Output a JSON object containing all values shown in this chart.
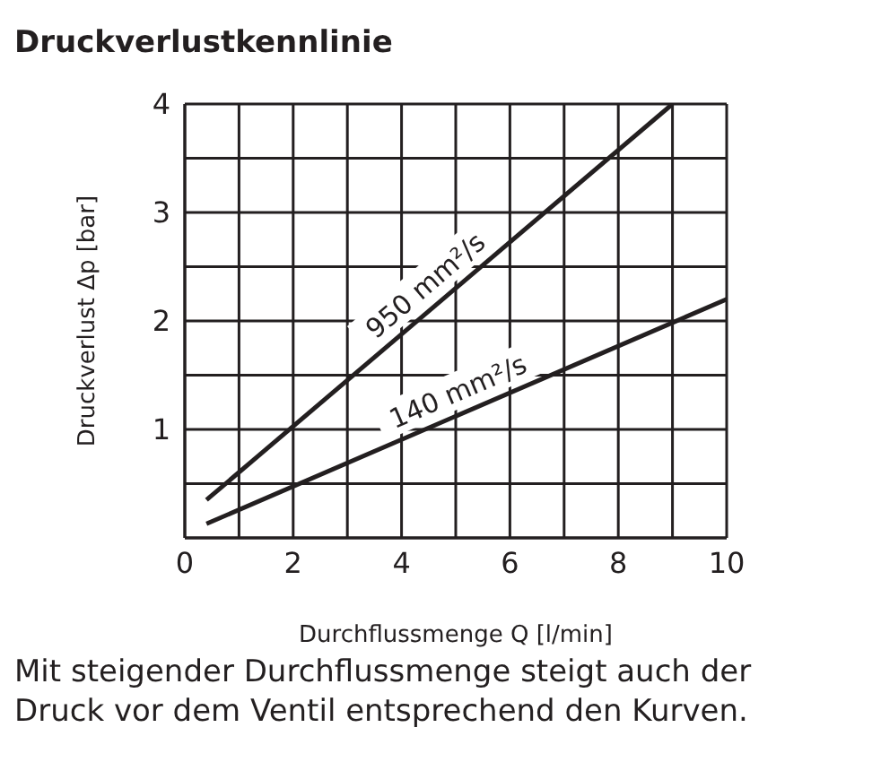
{
  "chart_data": {
    "type": "line",
    "title": "Druckverlustkennlinie",
    "xlabel": "Durchflussmenge Q [l/min]",
    "ylabel": "Druckverlust Δp [bar]",
    "series": [
      {
        "name": "950 mm²/s",
        "color": "#231f20",
        "x": [
          0.4,
          9
        ],
        "values": [
          0.35,
          4
        ]
      },
      {
        "name": "140 mm²/s",
        "color": "#231f20",
        "x": [
          0.4,
          10
        ],
        "values": [
          0.13,
          2.2
        ]
      }
    ],
    "xlim": [
      0,
      10
    ],
    "ylim": [
      0,
      4
    ],
    "xticks": [
      0,
      {
        "value": 1,
        "label": null
      },
      2,
      {
        "value": 3,
        "label": null
      },
      4,
      {
        "value": 5,
        "label": null
      },
      6,
      {
        "value": 7,
        "label": null
      },
      8,
      {
        "value": 9,
        "label": null
      },
      10
    ],
    "yticks": [
      {
        "value": 0,
        "label": null
      },
      {
        "value": 0.5,
        "label": null
      },
      1,
      {
        "value": 1.5,
        "label": null
      },
      2,
      {
        "value": 2.5,
        "label": null
      },
      3,
      {
        "value": 3.5,
        "label": null
      },
      4
    ],
    "grid": true,
    "marker": "none",
    "line_style": "solid",
    "annotations": [
      "Mit steigender Durchflussmenge steigt auch der Druck vor dem Ventil entsprechend den Kurven."
    ]
  }
}
